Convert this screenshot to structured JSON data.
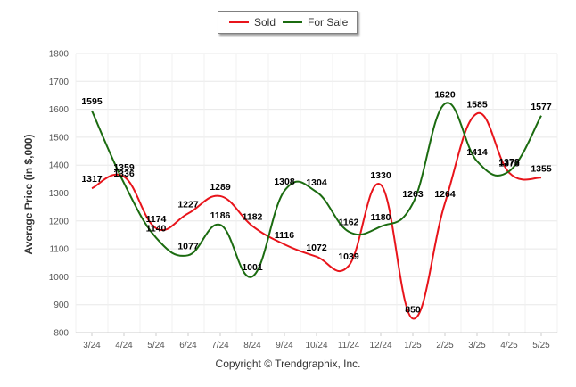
{
  "legend": {
    "sold_label": "Sold",
    "forsale_label": "For Sale"
  },
  "copyright": "Copyright © Trendgraphix, Inc.",
  "colors": {
    "sold": "#e8141b",
    "for_sale": "#1b6b10",
    "grid": "#e8e8e8",
    "axis_text": "#555555"
  },
  "chart_data": {
    "type": "line",
    "title": "",
    "xlabel": "",
    "ylabel": "Average Price (in $,000)",
    "ylim": [
      800,
      1800
    ],
    "yticks": [
      800,
      900,
      1000,
      1100,
      1200,
      1300,
      1400,
      1500,
      1600,
      1700,
      1800
    ],
    "grid": true,
    "legend_position": "top-center",
    "categories": [
      "3/24",
      "4/24",
      "5/24",
      "6/24",
      "7/24",
      "8/24",
      "9/24",
      "10/24",
      "11/24",
      "12/24",
      "1/25",
      "2/25",
      "3/25",
      "4/25",
      "5/25"
    ],
    "series": [
      {
        "name": "Sold",
        "values": [
          1317,
          1359,
          1174,
          1227,
          1289,
          1182,
          1116,
          1072,
          1039,
          1330,
          850,
          1264,
          1585,
          1373,
          1355
        ]
      },
      {
        "name": "For Sale",
        "values": [
          1595,
          1336,
          1140,
          1077,
          1186,
          1001,
          1308,
          1304,
          1162,
          1180,
          1263,
          1620,
          1414,
          1378,
          1577
        ]
      }
    ]
  }
}
